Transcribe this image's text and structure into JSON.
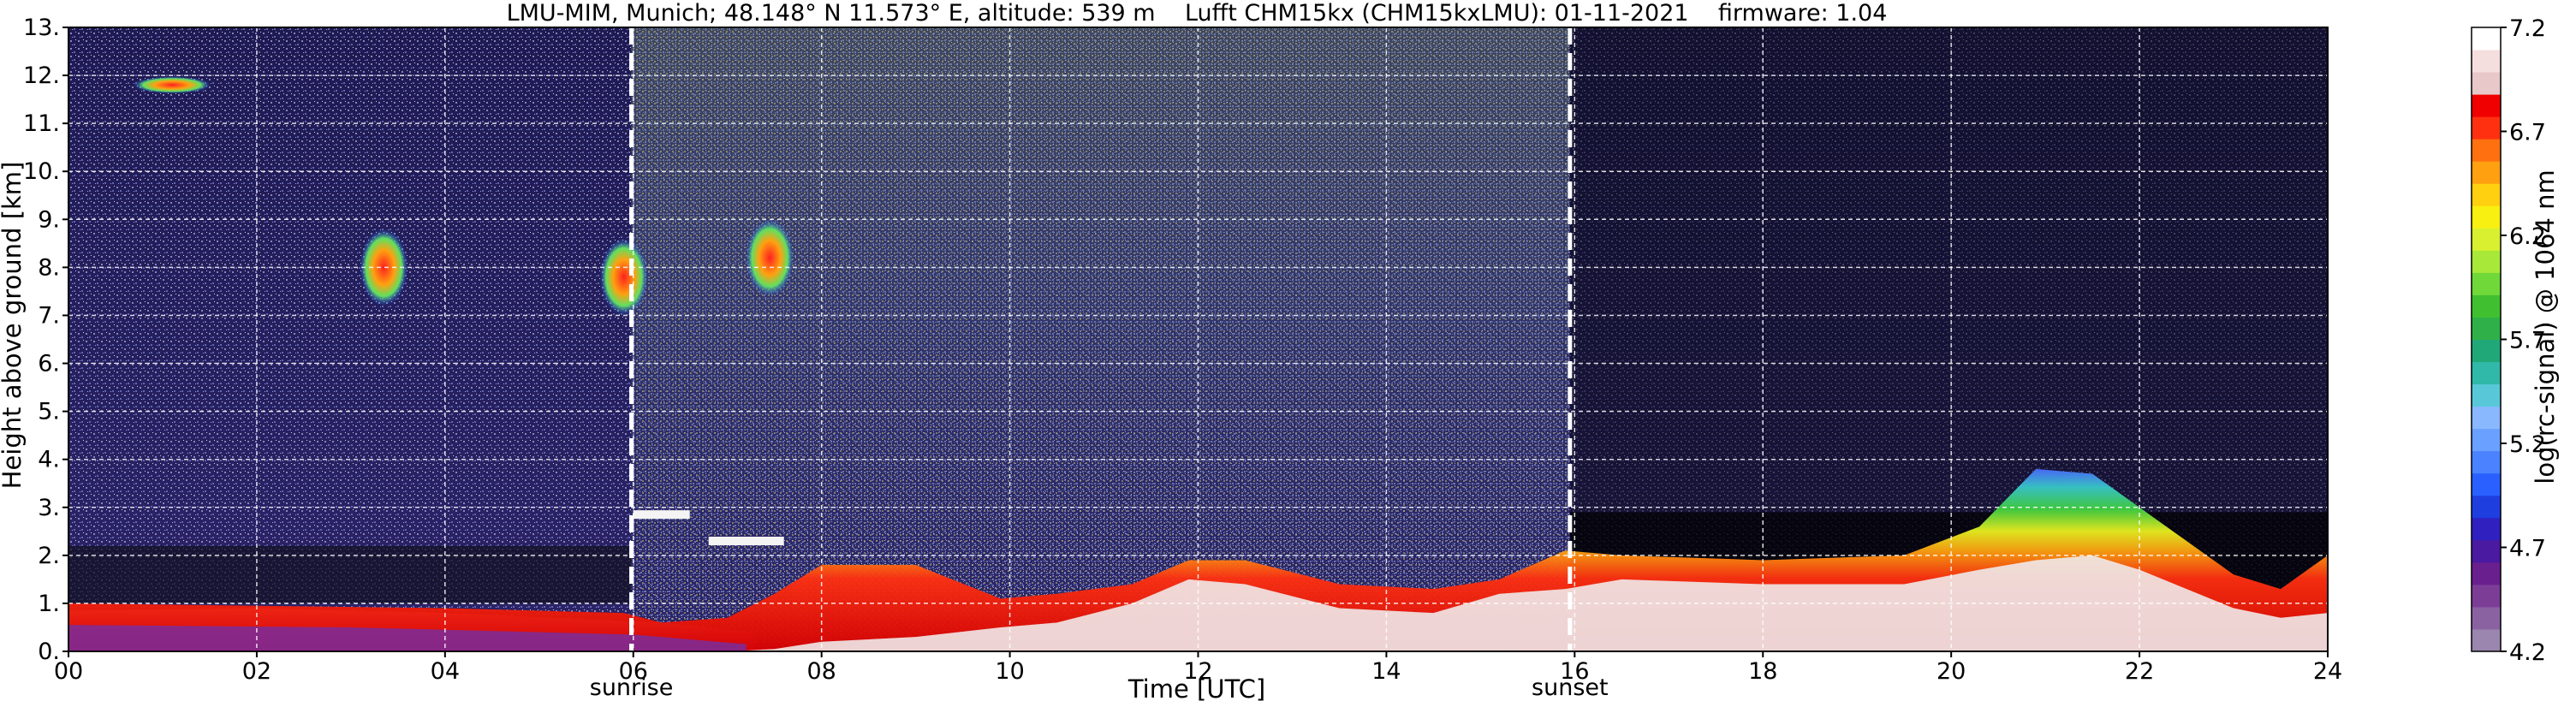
{
  "chart_data": {
    "type": "heatmap",
    "title": "LMU-MIM, Munich; 48.148° N 11.573° E, altitude: 539 m    Lufft CHM15kx (CHM15kxLMU): 01-11-2021    firmware: 1.04",
    "xlabel": "Time [UTC]",
    "ylabel": "Height above ground [km]",
    "xlim": [
      0,
      24
    ],
    "ylim": [
      0,
      13
    ],
    "x_ticks": [
      "00",
      "02",
      "04",
      "06",
      "08",
      "10",
      "12",
      "14",
      "16",
      "18",
      "20",
      "22",
      "24"
    ],
    "y_ticks": [
      "0.",
      "1.",
      "2.",
      "3.",
      "4.",
      "5.",
      "6.",
      "7.",
      "8.",
      "9.",
      "10.",
      "11.",
      "12.",
      "13."
    ],
    "grid": true,
    "markers": [
      {
        "label": "sunrise",
        "x": 5.98
      },
      {
        "label": "sunset",
        "x": 15.95
      }
    ],
    "colorbar": {
      "label": "log(rc-signal) @ 1064 nm",
      "range": [
        4.2,
        7.2
      ],
      "ticks": [
        "4.2",
        "4.7",
        "5.2",
        "5.7",
        "6.2",
        "6.7",
        "7.2"
      ]
    },
    "layers": {
      "boundary_layer": {
        "x": [
          0,
          2,
          4,
          5.9,
          6.3,
          7.0,
          7.5,
          8.0,
          9.0,
          9.9,
          10.5,
          11.3,
          11.9,
          12.5,
          13.5,
          14.5,
          15.2,
          15.9,
          16.5,
          18.0,
          19.5,
          20.3,
          20.9,
          21.5,
          22.0,
          22.5,
          23.0,
          23.5,
          24.0
        ],
        "top_km": [
          1.0,
          0.95,
          0.9,
          0.8,
          0.6,
          0.7,
          1.2,
          1.8,
          1.8,
          1.1,
          1.2,
          1.4,
          1.9,
          1.9,
          1.4,
          1.3,
          1.5,
          2.1,
          2.0,
          1.9,
          2.0,
          2.6,
          3.8,
          3.7,
          3.0,
          2.3,
          1.6,
          1.3,
          2.0
        ],
        "core_km": [
          0,
          0,
          0,
          0,
          0,
          0,
          0.05,
          0.2,
          0.3,
          0.5,
          0.6,
          1.0,
          1.5,
          1.4,
          0.9,
          0.8,
          1.2,
          1.3,
          1.5,
          1.4,
          1.4,
          1.7,
          1.9,
          2.0,
          1.7,
          1.3,
          0.9,
          0.7,
          0.8
        ]
      },
      "clouds": [
        {
          "x": 3.35,
          "y": 8.0,
          "value": 6.3
        },
        {
          "x": 5.9,
          "y": 7.8,
          "value": 6.2
        },
        {
          "x": 7.45,
          "y": 8.2,
          "value": 6.1
        },
        {
          "x": 1.1,
          "y": 11.8,
          "value": 5.6
        }
      ],
      "residual_layer": [
        {
          "x0": 6.0,
          "x1": 6.6,
          "y": 2.85,
          "value": 7.0
        },
        {
          "x0": 6.8,
          "x1": 7.6,
          "y": 2.3,
          "value": 7.0
        }
      ]
    }
  }
}
